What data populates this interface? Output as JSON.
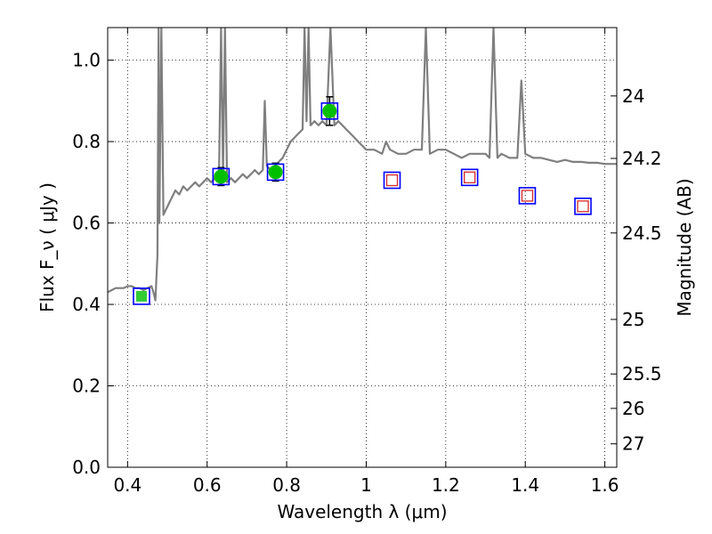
{
  "chart_data": {
    "type": "scatter",
    "xlabel": "Wavelength  λ (μm)",
    "ylabel": "Flux  F_ν  ( μJy )",
    "ylabel2": "Magnitude (AB)",
    "xlim": [
      0.35,
      1.63
    ],
    "ylim": [
      0.0,
      1.08
    ],
    "grid": true,
    "x_ticks": [
      0.4,
      0.6,
      0.8,
      1.0,
      1.2,
      1.4,
      1.6
    ],
    "x_tick_labels": [
      "0.4",
      "0.6",
      "0.8",
      "1",
      "1.2",
      "1.4",
      "1.6"
    ],
    "y_ticks": [
      0.0,
      0.2,
      0.4,
      0.6,
      0.8,
      1.0
    ],
    "y_tick_labels": [
      "0.0",
      "0.2",
      "0.4",
      "0.6",
      "0.8",
      "1.0"
    ],
    "mag_ticks": [
      24,
      24.2,
      24.5,
      25,
      25.5,
      26,
      27
    ],
    "mag_tick_labels": [
      "24",
      "24.2",
      "24.5",
      "25",
      "25.5",
      "26",
      "27"
    ],
    "colors": {
      "spectrum": "#7f7f7f",
      "model_box": "#0000ff",
      "observed_fill": "#00bf00",
      "upper_box": "#d62728",
      "errorbar": "#000000",
      "grid": "#000000"
    },
    "spectrum": [
      [
        0.35,
        0.43
      ],
      [
        0.36,
        0.435
      ],
      [
        0.37,
        0.44
      ],
      [
        0.38,
        0.44
      ],
      [
        0.39,
        0.44
      ],
      [
        0.4,
        0.445
      ],
      [
        0.41,
        0.445
      ],
      [
        0.42,
        0.44
      ],
      [
        0.43,
        0.44
      ],
      [
        0.44,
        0.435
      ],
      [
        0.45,
        0.44
      ],
      [
        0.46,
        0.445
      ],
      [
        0.465,
        0.43
      ],
      [
        0.47,
        0.41
      ],
      [
        0.475,
        0.52
      ],
      [
        0.478,
        1.08
      ],
      [
        0.48,
        0.6
      ],
      [
        0.485,
        1.08
      ],
      [
        0.49,
        0.62
      ],
      [
        0.5,
        0.64
      ],
      [
        0.51,
        0.66
      ],
      [
        0.52,
        0.68
      ],
      [
        0.53,
        0.67
      ],
      [
        0.54,
        0.69
      ],
      [
        0.55,
        0.68
      ],
      [
        0.56,
        0.69
      ],
      [
        0.57,
        0.7
      ],
      [
        0.58,
        0.69
      ],
      [
        0.59,
        0.7
      ],
      [
        0.6,
        0.71
      ],
      [
        0.61,
        0.7
      ],
      [
        0.62,
        0.71
      ],
      [
        0.63,
        0.72
      ],
      [
        0.635,
        1.08
      ],
      [
        0.64,
        0.72
      ],
      [
        0.645,
        1.08
      ],
      [
        0.65,
        0.7
      ],
      [
        0.66,
        0.71
      ],
      [
        0.67,
        0.7
      ],
      [
        0.68,
        0.71
      ],
      [
        0.69,
        0.72
      ],
      [
        0.7,
        0.71
      ],
      [
        0.71,
        0.72
      ],
      [
        0.72,
        0.73
      ],
      [
        0.73,
        0.72
      ],
      [
        0.74,
        0.73
      ],
      [
        0.745,
        0.9
      ],
      [
        0.75,
        0.74
      ],
      [
        0.76,
        0.73
      ],
      [
        0.77,
        0.74
      ],
      [
        0.78,
        0.75
      ],
      [
        0.79,
        0.76
      ],
      [
        0.8,
        0.78
      ],
      [
        0.81,
        0.8
      ],
      [
        0.82,
        0.81
      ],
      [
        0.83,
        0.82
      ],
      [
        0.84,
        0.83
      ],
      [
        0.845,
        1.08
      ],
      [
        0.85,
        0.85
      ],
      [
        0.855,
        1.08
      ],
      [
        0.86,
        0.84
      ],
      [
        0.87,
        0.85
      ],
      [
        0.88,
        0.84
      ],
      [
        0.89,
        0.85
      ],
      [
        0.9,
        0.84
      ],
      [
        0.91,
        1.08
      ],
      [
        0.92,
        0.84
      ],
      [
        0.93,
        0.85
      ],
      [
        0.94,
        0.84
      ],
      [
        0.95,
        0.83
      ],
      [
        0.96,
        0.82
      ],
      [
        0.97,
        0.81
      ],
      [
        0.98,
        0.8
      ],
      [
        0.99,
        0.79
      ],
      [
        1.0,
        0.78
      ],
      [
        1.02,
        0.78
      ],
      [
        1.04,
        0.77
      ],
      [
        1.05,
        0.8
      ],
      [
        1.06,
        0.78
      ],
      [
        1.08,
        0.77
      ],
      [
        1.1,
        0.77
      ],
      [
        1.12,
        0.78
      ],
      [
        1.14,
        0.78
      ],
      [
        1.15,
        1.08
      ],
      [
        1.16,
        0.77
      ],
      [
        1.18,
        0.78
      ],
      [
        1.2,
        0.78
      ],
      [
        1.22,
        0.77
      ],
      [
        1.24,
        0.76
      ],
      [
        1.26,
        0.77
      ],
      [
        1.28,
        0.77
      ],
      [
        1.3,
        0.77
      ],
      [
        1.31,
        0.76
      ],
      [
        1.32,
        1.08
      ],
      [
        1.33,
        0.76
      ],
      [
        1.34,
        0.77
      ],
      [
        1.36,
        0.76
      ],
      [
        1.38,
        0.76
      ],
      [
        1.39,
        0.95
      ],
      [
        1.4,
        0.77
      ],
      [
        1.42,
        0.76
      ],
      [
        1.44,
        0.76
      ],
      [
        1.46,
        0.755
      ],
      [
        1.48,
        0.75
      ],
      [
        1.5,
        0.755
      ],
      [
        1.52,
        0.75
      ],
      [
        1.54,
        0.75
      ],
      [
        1.56,
        0.748
      ],
      [
        1.58,
        0.748
      ],
      [
        1.6,
        0.745
      ],
      [
        1.62,
        0.745
      ],
      [
        1.63,
        0.745
      ]
    ],
    "model_boxes": [
      {
        "x": 0.435,
        "y": 0.42
      },
      {
        "x": 0.635,
        "y": 0.714
      },
      {
        "x": 0.772,
        "y": 0.725
      },
      {
        "x": 0.908,
        "y": 0.875
      },
      {
        "x": 1.065,
        "y": 0.705
      },
      {
        "x": 1.26,
        "y": 0.712
      },
      {
        "x": 1.405,
        "y": 0.667
      },
      {
        "x": 1.545,
        "y": 0.641
      }
    ],
    "observed_points": [
      {
        "x": 0.435,
        "y": 0.42
      },
      {
        "x": 0.635,
        "y": 0.714,
        "err": 0.022
      },
      {
        "x": 0.772,
        "y": 0.725,
        "err": 0.022
      },
      {
        "x": 0.908,
        "y": 0.875,
        "err": 0.035
      }
    ],
    "upper_limit_boxes": [
      {
        "x": 1.065,
        "y": 0.705
      },
      {
        "x": 1.26,
        "y": 0.712
      },
      {
        "x": 1.405,
        "y": 0.667
      },
      {
        "x": 1.545,
        "y": 0.641
      }
    ]
  }
}
